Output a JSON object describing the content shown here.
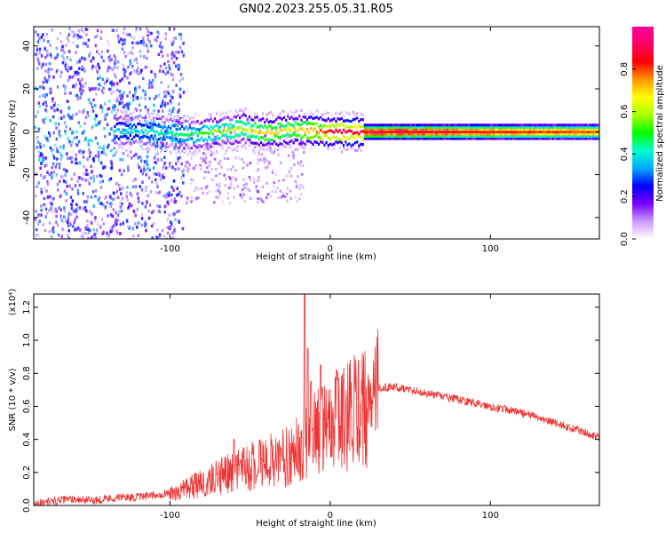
{
  "figure": {
    "title": "GN02.2023.255.05.31.R05"
  },
  "chart_data": [
    {
      "type": "heatmap",
      "xlabel": "Height of straight line (km)",
      "ylabel": "Frequency (Hz)",
      "xlim": [
        -185,
        168
      ],
      "ylim": [
        -50,
        49
      ],
      "xticks": [
        -100,
        0,
        100
      ],
      "yticks": [
        -40,
        -20,
        0,
        20,
        40
      ],
      "colorbar": {
        "label": "Normalized spectral amplitude",
        "range": [
          0,
          1
        ],
        "ticks": [
          0.0,
          0.2,
          0.4,
          0.6,
          0.8
        ],
        "colormap": [
          "#ffffff",
          "#cc99ff",
          "#7700ff",
          "#0000ff",
          "#00aaff",
          "#00ffcc",
          "#00ff00",
          "#aaff00",
          "#ffff00",
          "#ff9900",
          "#ff0000",
          "#ff0066",
          "#ff0099"
        ]
      },
      "ridge": {
        "height_km": [
          -130,
          -110,
          -90,
          -70,
          -55,
          -40,
          -25,
          -10,
          0,
          20,
          60,
          100,
          168
        ],
        "frequency_hz": [
          0.5,
          0.0,
          -1.5,
          0.0,
          1.5,
          -0.5,
          1.0,
          0.5,
          0.0,
          0.0,
          0.0,
          0.0,
          0.0
        ],
        "amplitude": [
          0.35,
          0.4,
          0.45,
          0.55,
          0.6,
          0.7,
          0.65,
          0.75,
          0.85,
          0.9,
          0.9,
          0.85,
          0.8
        ]
      }
    },
    {
      "type": "line",
      "xlabel": "Height of straight line (km)",
      "ylabel": "SNR (10 * v/v)",
      "yscale_label": "(x10⁴)",
      "xlim": [
        -185,
        168
      ],
      "ylim": [
        0,
        1.28
      ],
      "xticks": [
        -100,
        0,
        100
      ],
      "yticks": [
        0.0,
        0.2,
        0.4,
        0.6,
        0.8,
        1.0,
        1.2
      ],
      "color": "#ee3333",
      "series": [
        {
          "x": [
            -185,
            -170,
            -160,
            -150,
            -140,
            -130,
            -120,
            -110,
            -100,
            -90,
            -80,
            -70,
            -60,
            -50,
            -40,
            -30,
            -25,
            -20,
            -15,
            -10,
            -5,
            0,
            5,
            10,
            15,
            20,
            25,
            30,
            40,
            50,
            60,
            70,
            80,
            90,
            100,
            110,
            120,
            130,
            140,
            150,
            160,
            168
          ],
          "y": [
            0.01,
            0.03,
            0.04,
            0.03,
            0.04,
            0.05,
            0.05,
            0.06,
            0.08,
            0.12,
            0.16,
            0.2,
            0.24,
            0.28,
            0.3,
            0.34,
            0.36,
            0.4,
            0.45,
            0.5,
            0.55,
            0.55,
            0.58,
            0.62,
            0.66,
            0.68,
            0.7,
            0.71,
            0.72,
            0.7,
            0.68,
            0.66,
            0.64,
            0.62,
            0.6,
            0.58,
            0.56,
            0.53,
            0.5,
            0.47,
            0.44,
            0.41
          ]
        }
      ],
      "spikes": [
        {
          "x": -16,
          "y": 1.28
        },
        {
          "x": -14,
          "y": 0.95
        },
        {
          "x": -12,
          "y": 0.75
        },
        {
          "x": -6,
          "y": 0.85
        },
        {
          "x": 4,
          "y": 0.82
        },
        {
          "x": -60,
          "y": 0.4
        }
      ]
    }
  ]
}
